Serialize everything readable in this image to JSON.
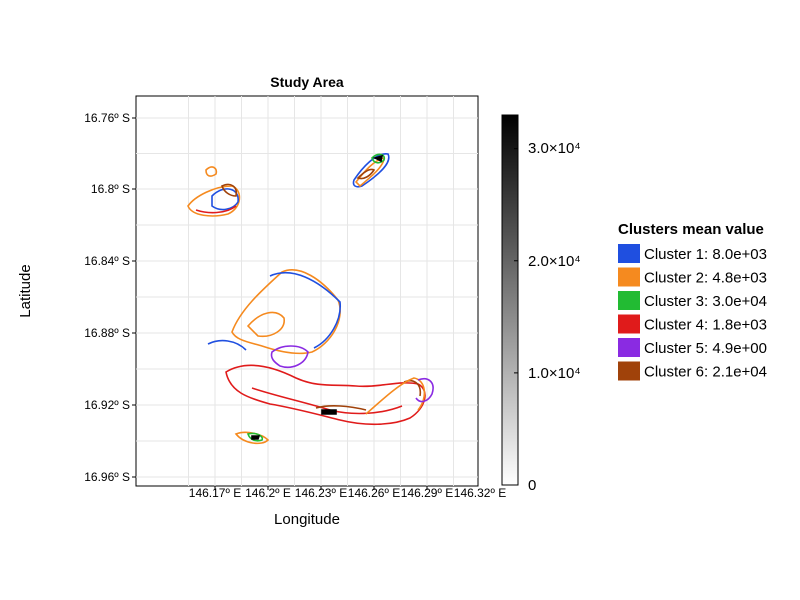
{
  "map": {
    "title": "Study Area",
    "xlabel": "Longitude",
    "ylabel": "Latitude",
    "x_ticks": [
      "146.17º E",
      "146.2º E",
      "146.23º E",
      "146.26º E",
      "146.29º E",
      "146.32º E"
    ],
    "y_ticks": [
      "16.76º S",
      "16.8º S",
      "16.84º S",
      "16.88º S",
      "16.92º S",
      "16.96º S"
    ],
    "colorbar": {
      "ticks": [
        "0",
        "1.0×10⁴",
        "2.0×10⁴",
        "3.0×10⁴"
      ],
      "min": 0,
      "max": 33000,
      "colors": [
        "#ffffff",
        "#000000"
      ]
    },
    "legend": {
      "title": "Clusters mean value",
      "items": [
        {
          "label": "Cluster 1: 8.0e+03",
          "color": "#1f4fe0"
        },
        {
          "label": "Cluster 2: 4.8e+03",
          "color": "#f58a1f"
        },
        {
          "label": "Cluster 3: 3.0e+04",
          "color": "#22bb33"
        },
        {
          "label": "Cluster 4: 1.8e+03",
          "color": "#e01b1b"
        },
        {
          "label": "Cluster 5: 4.9e+00",
          "color": "#8a2be2"
        },
        {
          "label": "Cluster 6: 2.1e+04",
          "color": "#a0420a"
        }
      ]
    }
  }
}
